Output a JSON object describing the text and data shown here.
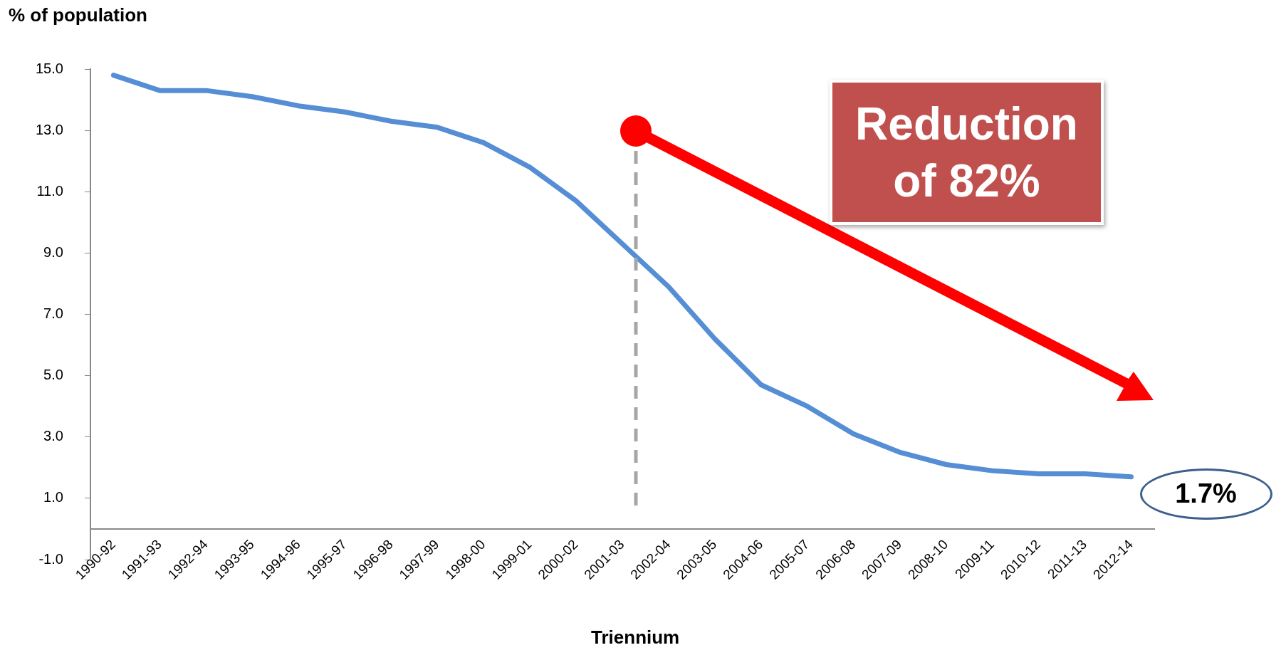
{
  "chart_data": {
    "type": "line",
    "xlabel": "Triennium",
    "ylabel": "% of population",
    "categories": [
      "1990-92",
      "1991-93",
      "1992-94",
      "1993-95",
      "1994-96",
      "1995-97",
      "1996-98",
      "1997-99",
      "1998-00",
      "1999-01",
      "2000-02",
      "2001-03",
      "2002-04",
      "2003-05",
      "2004-06",
      "2005-07",
      "2006-08",
      "2007-09",
      "2008-10",
      "2009-11",
      "2010-12",
      "2011-13",
      "2012-14"
    ],
    "series": [
      {
        "color": "#558ed5",
        "values": [
          14.8,
          14.3,
          14.3,
          14.1,
          13.8,
          13.6,
          13.3,
          13.1,
          12.6,
          11.8,
          10.7,
          9.3,
          7.9,
          6.2,
          4.7,
          4.0,
          3.1,
          2.5,
          2.1,
          1.9,
          1.8,
          1.8,
          1.7
        ]
      }
    ],
    "ylim": [
      -1,
      15
    ],
    "yticks": [
      {
        "value": -1,
        "label": "-1.0"
      },
      {
        "value": 1,
        "label": "1.0"
      },
      {
        "value": 3,
        "label": "3.0"
      },
      {
        "value": 5,
        "label": "5.0"
      },
      {
        "value": 7,
        "label": "7.0"
      },
      {
        "value": 9,
        "label": "9.0"
      },
      {
        "value": 11,
        "label": "11.0"
      },
      {
        "value": 13,
        "label": "13.0"
      },
      {
        "value": 15,
        "label": "15.0"
      }
    ],
    "annotations": [
      "Reduction of 82%",
      {
        "text": "1.7%",
        "x": "2012-14",
        "y": 1.7
      }
    ],
    "grid": false,
    "legend": false,
    "marker": "none",
    "line_style": "solid"
  }
}
